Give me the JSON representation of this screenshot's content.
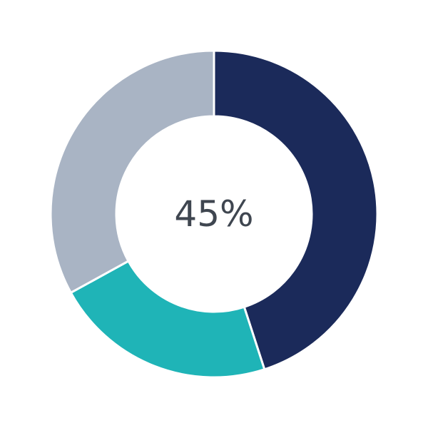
{
  "chart_data": {
    "type": "pie",
    "variant": "donut",
    "center_label": "45%",
    "values": [
      45,
      22,
      33
    ],
    "colors": [
      "#1b2a5a",
      "#1fb4b7",
      "#a9b4c4"
    ],
    "start_angle": "top",
    "direction": "clockwise",
    "legend": "none"
  }
}
